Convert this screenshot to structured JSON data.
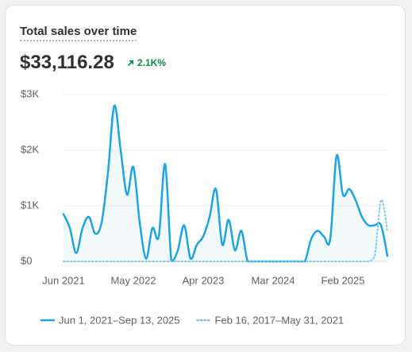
{
  "header": {
    "title": "Total sales over time",
    "total": "$33,116.28",
    "change": "2.1K%"
  },
  "chart_data": {
    "type": "line",
    "categories": [
      "Jun 2021",
      null,
      null,
      null,
      null,
      null,
      null,
      null,
      null,
      null,
      null,
      "May 2022",
      null,
      null,
      null,
      null,
      null,
      null,
      null,
      null,
      null,
      null,
      "Apr 2023",
      null,
      null,
      null,
      null,
      null,
      null,
      null,
      null,
      null,
      null,
      "Mar 2024",
      null,
      null,
      null,
      null,
      null,
      null,
      null,
      null,
      null,
      null,
      "Feb 2025",
      null,
      null,
      null,
      null,
      null,
      null,
      null
    ],
    "series": [
      {
        "name": "Jun 1, 2021–Sep 13, 2025",
        "color": "#1fa4df",
        "style": "solid",
        "values": [
          850,
          600,
          150,
          600,
          800,
          500,
          700,
          1600,
          2800,
          2000,
          1200,
          1700,
          700,
          50,
          600,
          450,
          1750,
          0,
          200,
          650,
          50,
          300,
          450,
          800,
          1300,
          300,
          750,
          200,
          550,
          0,
          0,
          0,
          0,
          0,
          0,
          0,
          0,
          0,
          0,
          400,
          550,
          450,
          400,
          1900,
          1200,
          1300,
          1100,
          800,
          650,
          650,
          650,
          100
        ]
      },
      {
        "name": "Feb 16, 2017–May 31, 2021",
        "color": "#7cc6ea",
        "style": "dotted",
        "values": [
          0,
          0,
          0,
          0,
          0,
          0,
          0,
          0,
          0,
          0,
          0,
          0,
          0,
          0,
          0,
          0,
          0,
          0,
          0,
          0,
          0,
          0,
          0,
          0,
          0,
          0,
          0,
          0,
          0,
          0,
          0,
          0,
          0,
          0,
          0,
          0,
          0,
          0,
          0,
          0,
          0,
          0,
          0,
          0,
          0,
          0,
          0,
          0,
          0,
          100,
          1100,
          550
        ]
      }
    ],
    "ylim": [
      0,
      3000
    ],
    "yticks": [
      {
        "value": 0,
        "label": "$0"
      },
      {
        "value": 1000,
        "label": "$1K"
      },
      {
        "value": 2000,
        "label": "$2K"
      },
      {
        "value": 3000,
        "label": "$3K"
      }
    ],
    "grid": true
  }
}
